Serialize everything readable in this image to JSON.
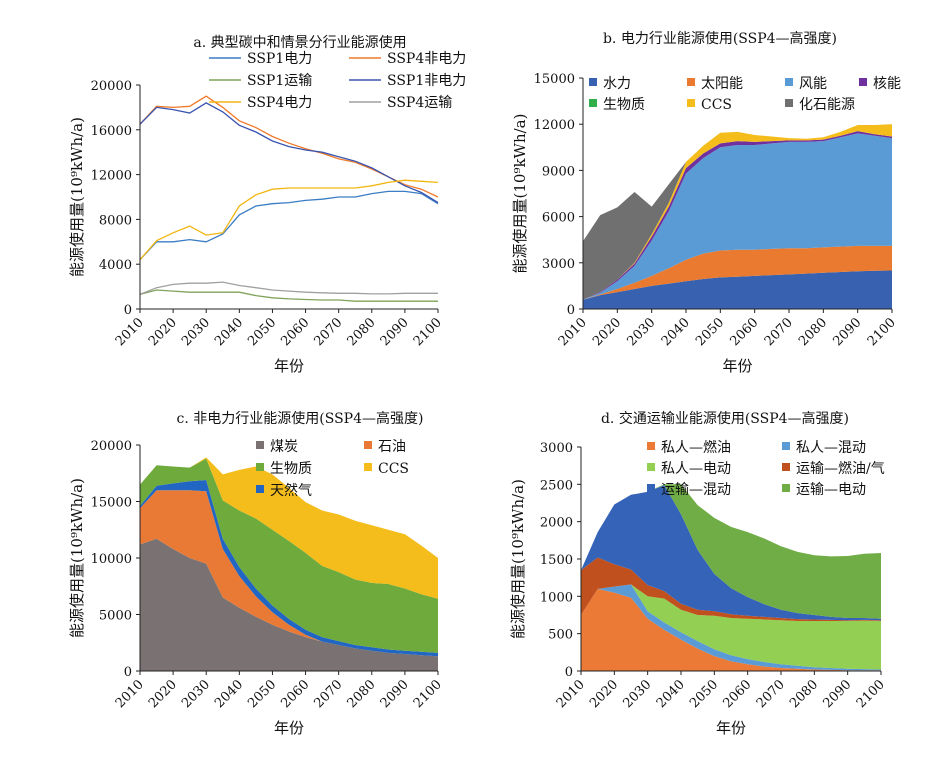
{
  "colors": {
    "SSP1电力": "#3b7dc4",
    "SSP4非电力": "#ef7a2a",
    "SSP1运输": "#7fa35a",
    "SSP1非电力": "#3a55b0",
    "SSP4电力": "#f2b612",
    "SSP4运输": "#a0a0a0",
    "水力": "#3862b0",
    "太阳能": "#e97a2f",
    "风能": "#5b9bd5",
    "核能": "#7030a0",
    "生物质": "#2fae4a",
    "CCS": "#f4bd1b",
    "化石能源": "#707070",
    "煤炭": "#7a7272",
    "石油": "#e97a36",
    "生物质c": "#6fab3c",
    "CCSc": "#f4bd1b",
    "天然气": "#2166c2",
    "私人—燃油": "#ea7a36",
    "私人—混动": "#5b9bd5",
    "私人—电动": "#92cf52",
    "运输—燃油/气": "#c0501e",
    "运输—混动": "#3463b8",
    "运输—电动": "#70ad47"
  },
  "chart_data": [
    {
      "type": "line",
      "title": "a. 典型碳中和情景分行业能源使用",
      "xlabel": "年份",
      "ylabel": "能源使用量(10⁹kWh/a)",
      "x": [
        2010,
        2015,
        2020,
        2025,
        2030,
        2035,
        2040,
        2045,
        2050,
        2055,
        2060,
        2065,
        2070,
        2075,
        2080,
        2085,
        2090,
        2095,
        2100
      ],
      "xticks": [
        "2010",
        "2020",
        "2030",
        "2040",
        "2050",
        "2060",
        "2070",
        "2080",
        "2090",
        "2100"
      ],
      "yticks": [
        "0",
        "4000",
        "8000",
        "12000",
        "16000",
        "20000"
      ],
      "ylim": [
        0,
        20000
      ],
      "grid": false,
      "series": [
        {
          "name": "SSP1电力",
          "values": [
            4400,
            6000,
            6000,
            6200,
            6000,
            6700,
            8400,
            9200,
            9400,
            9500,
            9700,
            9800,
            10000,
            10000,
            10300,
            10500,
            10500,
            10300,
            9400
          ]
        },
        {
          "name": "SSP4非电力",
          "values": [
            16500,
            18100,
            18000,
            18100,
            19000,
            18000,
            16800,
            16200,
            15400,
            14800,
            14300,
            13900,
            13400,
            13100,
            12500,
            11800,
            11100,
            10700,
            10000
          ]
        },
        {
          "name": "SSP1运输",
          "values": [
            1300,
            1700,
            1600,
            1500,
            1500,
            1500,
            1500,
            1200,
            1000,
            900,
            850,
            800,
            800,
            700,
            700,
            700,
            700,
            700,
            700
          ]
        },
        {
          "name": "SSP1非电力",
          "values": [
            16500,
            18000,
            17800,
            17500,
            18400,
            17600,
            16400,
            15800,
            15000,
            14500,
            14200,
            14000,
            13600,
            13200,
            12600,
            11800,
            11000,
            10400,
            9500
          ]
        },
        {
          "name": "SSP4电力",
          "values": [
            4400,
            6100,
            6800,
            7400,
            6600,
            6800,
            9200,
            10200,
            10700,
            10800,
            10800,
            10800,
            10800,
            10800,
            11000,
            11300,
            11500,
            11400,
            11300
          ]
        },
        {
          "name": "SSP4运输",
          "values": [
            1300,
            1900,
            2200,
            2300,
            2300,
            2400,
            2100,
            1900,
            1700,
            1600,
            1500,
            1450,
            1400,
            1400,
            1350,
            1350,
            1400,
            1400,
            1400
          ]
        }
      ],
      "legend": "top-right"
    },
    {
      "type": "area",
      "title": "b. 电力行业能源使用(SSP4—高强度)",
      "xlabel": "年份",
      "ylabel": "能源使用量(10⁹kWh/a)",
      "x": [
        2010,
        2015,
        2020,
        2025,
        2030,
        2035,
        2040,
        2045,
        2050,
        2055,
        2060,
        2065,
        2070,
        2075,
        2080,
        2085,
        2090,
        2095,
        2100
      ],
      "xticks": [
        "2010",
        "2020",
        "2030",
        "2040",
        "2050",
        "2060",
        "2070",
        "2080",
        "2090",
        "2100"
      ],
      "yticks": [
        "0",
        "3000",
        "6000",
        "9000",
        "12000",
        "15000"
      ],
      "ylim": [
        0,
        15000
      ],
      "grid": false,
      "series": [
        {
          "name": "水力",
          "values": [
            600,
            900,
            1100,
            1300,
            1500,
            1650,
            1800,
            1950,
            2050,
            2100,
            2150,
            2200,
            2250,
            2300,
            2350,
            2400,
            2450,
            2480,
            2500
          ]
        },
        {
          "name": "太阳能",
          "values": [
            0,
            50,
            200,
            400,
            650,
            1000,
            1400,
            1650,
            1750,
            1750,
            1700,
            1700,
            1700,
            1650,
            1650,
            1650,
            1650,
            1620,
            1600
          ]
        },
        {
          "name": "风能",
          "values": [
            0,
            100,
            500,
            1100,
            2300,
            3700,
            5600,
            6200,
            6700,
            6800,
            6800,
            6850,
            6900,
            6900,
            6900,
            7100,
            7300,
            7150,
            7000
          ]
        },
        {
          "name": "核能",
          "values": [
            0,
            50,
            100,
            150,
            250,
            300,
            350,
            300,
            250,
            250,
            200,
            150,
            100,
            100,
            100,
            100,
            150,
            100,
            100
          ]
        },
        {
          "name": "生物质",
          "values": [
            0,
            0,
            0,
            0,
            0,
            0,
            0,
            0,
            0,
            0,
            0,
            0,
            0,
            0,
            0,
            0,
            0,
            0,
            0
          ]
        },
        {
          "name": "CCS",
          "values": [
            0,
            0,
            0,
            50,
            150,
            250,
            400,
            500,
            700,
            600,
            450,
            300,
            150,
            100,
            150,
            250,
            400,
            600,
            800
          ]
        },
        {
          "name": "化石能源",
          "values": [
            3800,
            5000,
            4700,
            4600,
            1800,
            1200,
            0,
            0,
            0,
            0,
            0,
            0,
            0,
            0,
            0,
            0,
            0,
            0,
            0
          ]
        }
      ],
      "legend": "top-left"
    },
    {
      "type": "area",
      "title": "c. 非电力行业能源使用(SSP4—高强度)",
      "xlabel": "年份",
      "ylabel": "能源使用量(10⁹kWh/a)",
      "x": [
        2010,
        2015,
        2020,
        2025,
        2030,
        2035,
        2040,
        2045,
        2050,
        2055,
        2060,
        2065,
        2070,
        2075,
        2080,
        2085,
        2090,
        2095,
        2100
      ],
      "xticks": [
        "2010",
        "2020",
        "2030",
        "2040",
        "2050",
        "2060",
        "2070",
        "2080",
        "2090",
        "2100"
      ],
      "yticks": [
        "0",
        "5000",
        "10000",
        "15000",
        "20000"
      ],
      "ylim": [
        0,
        20000
      ],
      "grid": false,
      "series": [
        {
          "name": "煤炭",
          "values": [
            11200,
            11700,
            10800,
            10000,
            9500,
            6500,
            5600,
            4800,
            4100,
            3500,
            3000,
            2600,
            2300,
            2000,
            1800,
            1600,
            1500,
            1400,
            1300
          ]
        },
        {
          "name": "石油",
          "values": [
            3200,
            4300,
            5200,
            6000,
            6400,
            4300,
            2800,
            1800,
            1100,
            600,
            200,
            0,
            0,
            0,
            0,
            0,
            0,
            0,
            0
          ]
        },
        {
          "name": "天然气",
          "values": [
            200,
            400,
            600,
            800,
            1000,
            900,
            800,
            700,
            600,
            500,
            450,
            400,
            350,
            300,
            300,
            300,
            300,
            300,
            300
          ]
        },
        {
          "name": "生物质",
          "values": [
            1900,
            1800,
            1500,
            1200,
            1900,
            3400,
            5000,
            6200,
            6700,
            6900,
            6800,
            6300,
            6100,
            5800,
            5700,
            5800,
            5500,
            5100,
            4800
          ]
        },
        {
          "name": "CCS",
          "values": [
            0,
            0,
            0,
            0,
            100,
            2300,
            3600,
            4600,
            4900,
            4700,
            4500,
            4900,
            5100,
            5200,
            5100,
            4800,
            4800,
            4300,
            3600
          ]
        }
      ],
      "legend": "top-right"
    },
    {
      "type": "area",
      "title": "d. 交通运输业能源使用(SSP4—高强度)",
      "xlabel": "年份",
      "ylabel": "能源使用量(10⁹kWh/a)",
      "x": [
        2010,
        2015,
        2020,
        2025,
        2030,
        2035,
        2040,
        2045,
        2050,
        2055,
        2060,
        2065,
        2070,
        2075,
        2080,
        2085,
        2090,
        2095,
        2100
      ],
      "xticks": [
        "2010",
        "2020",
        "2030",
        "2040",
        "2050",
        "2060",
        "2070",
        "2080",
        "2090",
        "2100"
      ],
      "yticks": [
        "0",
        "500",
        "1000",
        "1500",
        "2000",
        "2500",
        "3000"
      ],
      "ylim": [
        0,
        3000
      ],
      "grid": false,
      "series": [
        {
          "name": "私人—燃油",
          "values": [
            750,
            1100,
            1050,
            980,
            700,
            550,
            420,
            300,
            200,
            130,
            90,
            60,
            40,
            30,
            20,
            15,
            10,
            10,
            10
          ]
        },
        {
          "name": "私人—混动",
          "values": [
            0,
            0,
            80,
            180,
            100,
            100,
            100,
            100,
            90,
            80,
            70,
            60,
            50,
            40,
            30,
            25,
            20,
            15,
            10
          ]
        },
        {
          "name": "私人—电动",
          "values": [
            0,
            0,
            0,
            0,
            200,
            320,
            300,
            350,
            450,
            500,
            540,
            570,
            590,
            600,
            620,
            630,
            640,
            650,
            650
          ]
        },
        {
          "name": "运输—燃油/气",
          "values": [
            600,
            420,
            300,
            200,
            150,
            100,
            80,
            70,
            60,
            50,
            40,
            35,
            30,
            25,
            20,
            15,
            10,
            10,
            10
          ]
        },
        {
          "name": "运输—混动",
          "values": [
            0,
            340,
            800,
            1000,
            1250,
            1420,
            1200,
            800,
            500,
            350,
            250,
            170,
            110,
            80,
            60,
            40,
            30,
            25,
            20
          ]
        },
        {
          "name": "运输—电动",
          "values": [
            0,
            0,
            0,
            0,
            0,
            10,
            400,
            600,
            750,
            820,
            870,
            880,
            850,
            820,
            800,
            810,
            830,
            860,
            880
          ]
        }
      ],
      "legend": "top"
    }
  ]
}
